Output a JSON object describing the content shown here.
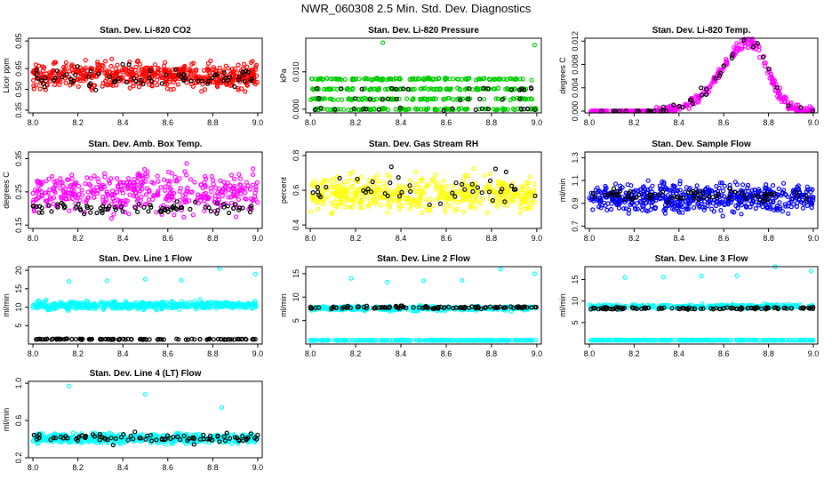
{
  "title": "NWR_060308  2.5 Min. Std. Dev. Diagnostics",
  "chart_data": [
    {
      "type": "scatter",
      "title": "Stan. Dev. Li-820 CO2",
      "ylabel": "Licor ppm",
      "xlim": [
        7.98,
        9.02
      ],
      "ylim": [
        0.33,
        0.87
      ],
      "x_ticks": [
        "8.0",
        "8.2",
        "8.4",
        "8.6",
        "8.8",
        "9.0"
      ],
      "y_ticks": [
        "0.35",
        "0.50",
        "0.65",
        "0.85"
      ],
      "y_tick_values": [
        0.35,
        0.5,
        0.65,
        0.85
      ],
      "series": [
        {
          "name": "main",
          "color": "#ff0000",
          "pattern": "band",
          "center": 0.6,
          "spread": 0.09,
          "count": 520
        },
        {
          "name": "secondary",
          "color": "#000000",
          "pattern": "band",
          "center": 0.58,
          "spread": 0.08,
          "count": 70
        }
      ]
    },
    {
      "type": "scatter",
      "title": "Stan. Dev. Li-820 Pressure",
      "ylabel": "kPa",
      "xlim": [
        7.98,
        9.02
      ],
      "ylim": [
        -0.001,
        0.019
      ],
      "x_ticks": [
        "8.0",
        "8.2",
        "8.4",
        "8.6",
        "8.8",
        "9.0"
      ],
      "y_ticks": [
        "0.000",
        "0.010"
      ],
      "y_tick_values": [
        0.0,
        0.01
      ],
      "series": [
        {
          "name": "main",
          "color": "#00cc00",
          "pattern": "levels",
          "levels": [
            0.0,
            0.0027,
            0.0054,
            0.0081
          ],
          "count": 460
        },
        {
          "name": "secondary",
          "color": "#000000",
          "pattern": "levels",
          "levels": [
            0.0,
            0.0027,
            0.0054
          ],
          "count": 45
        }
      ],
      "outliers": [
        {
          "x": 8.32,
          "y": 0.0178,
          "color": "#00cc00"
        },
        {
          "x": 8.99,
          "y": 0.0172,
          "color": "#00cc00"
        }
      ]
    },
    {
      "type": "scatter",
      "title": "Stan. Dev. Li-820 Temp.",
      "ylabel": "degrees C",
      "xlim": [
        7.98,
        9.02
      ],
      "ylim": [
        -0.0003,
        0.0125
      ],
      "x_ticks": [
        "8.0",
        "8.2",
        "8.4",
        "8.6",
        "8.8",
        "9.0"
      ],
      "y_ticks": [
        "0.000",
        "0.004",
        "0.008",
        "0.012"
      ],
      "y_tick_values": [
        0.0,
        0.004,
        0.008,
        0.012
      ],
      "series": [
        {
          "name": "main",
          "color": "#ff00ff",
          "pattern": "hump",
          "count": 380
        },
        {
          "name": "secondary",
          "color": "#000000",
          "pattern": "hump",
          "count": 40
        }
      ]
    },
    {
      "type": "scatter",
      "title": "Stan. Dev. Amb. Box Temp.",
      "ylabel": "degrees C",
      "xlim": [
        7.98,
        9.02
      ],
      "ylim": [
        0.14,
        0.37
      ],
      "x_ticks": [
        "8.0",
        "8.2",
        "8.4",
        "8.6",
        "8.8",
        "9.0"
      ],
      "y_ticks": [
        "0.15",
        "0.25",
        "0.35"
      ],
      "y_tick_values": [
        0.15,
        0.25,
        0.35
      ],
      "series": [
        {
          "name": "main",
          "color": "#ff00ff",
          "pattern": "band",
          "center": 0.25,
          "spread": 0.06,
          "count": 420
        },
        {
          "name": "secondary",
          "color": "#000000",
          "pattern": "band",
          "center": 0.2,
          "spread": 0.015,
          "count": 80
        }
      ]
    },
    {
      "type": "scatter",
      "title": "Stan. Dev. Gas Stream RH",
      "ylabel": "percent",
      "xlim": [
        7.98,
        9.02
      ],
      "ylim": [
        0.38,
        0.82
      ],
      "x_ticks": [
        "8.0",
        "8.2",
        "8.4",
        "8.6",
        "8.8",
        "9.0"
      ],
      "y_ticks": [
        "0.4",
        "0.6",
        "0.8"
      ],
      "y_tick_values": [
        0.4,
        0.6,
        0.8
      ],
      "series": [
        {
          "name": "main",
          "color": "#ffff00",
          "pattern": "band",
          "center": 0.58,
          "spread": 0.1,
          "count": 460
        },
        {
          "name": "secondary",
          "color": "#000000",
          "pattern": "band",
          "center": 0.6,
          "spread": 0.09,
          "count": 45
        }
      ]
    },
    {
      "type": "scatter",
      "title": "Stan. Dev. Sample Flow",
      "ylabel": "ml/min",
      "xlim": [
        7.98,
        9.02
      ],
      "ylim": [
        0.68,
        1.35
      ],
      "x_ticks": [
        "8.0",
        "8.2",
        "8.4",
        "8.6",
        "8.8",
        "9.0"
      ],
      "y_ticks": [
        "0.7",
        "0.9",
        "1.1",
        "1.3"
      ],
      "y_tick_values": [
        0.7,
        0.9,
        1.1,
        1.3
      ],
      "series": [
        {
          "name": "main",
          "color": "#0000ee",
          "pattern": "band",
          "center": 0.95,
          "spread": 0.12,
          "count": 560
        },
        {
          "name": "secondary",
          "color": "#000000",
          "pattern": "band",
          "center": 0.97,
          "spread": 0.06,
          "count": 70
        }
      ]
    },
    {
      "type": "scatter",
      "title": "Stan. Dev. Line 1 Flow",
      "ylabel": "ml/min",
      "xlim": [
        7.98,
        9.02
      ],
      "ylim": [
        0,
        21
      ],
      "x_ticks": [
        "8.0",
        "8.2",
        "8.4",
        "8.6",
        "8.8",
        "9.0"
      ],
      "y_ticks": [
        "5",
        "10",
        "15",
        "20"
      ],
      "y_tick_values": [
        5,
        10,
        15,
        20
      ],
      "series": [
        {
          "name": "main",
          "color": "#00ffff",
          "pattern": "band",
          "center": 10.5,
          "spread": 1.0,
          "count": 480
        },
        {
          "name": "secondary",
          "color": "#000000",
          "pattern": "flat",
          "center": 1.3,
          "spread": 0.12,
          "count": 110
        }
      ],
      "outliers": [
        {
          "x": 8.16,
          "y": 17.0,
          "color": "#00ffff"
        },
        {
          "x": 8.33,
          "y": 17.2,
          "color": "#00ffff"
        },
        {
          "x": 8.5,
          "y": 17.6,
          "color": "#00ffff"
        },
        {
          "x": 8.66,
          "y": 17.3,
          "color": "#00ffff"
        },
        {
          "x": 8.83,
          "y": 20.5,
          "color": "#00ffff"
        },
        {
          "x": 8.99,
          "y": 19.0,
          "color": "#00ffff"
        }
      ]
    },
    {
      "type": "scatter",
      "title": "Stan. Dev. Line 2 Flow",
      "ylabel": "ml/min",
      "xlim": [
        7.98,
        9.02
      ],
      "ylim": [
        0,
        16.5
      ],
      "x_ticks": [
        "8.0",
        "8.2",
        "8.4",
        "8.6",
        "8.8",
        "9.0"
      ],
      "y_ticks": [
        "5",
        "10",
        "15"
      ],
      "y_tick_values": [
        5,
        10,
        15
      ],
      "series": [
        {
          "name": "main",
          "color": "#00ffff",
          "pattern": "band",
          "center": 7.6,
          "spread": 0.5,
          "count": 300
        },
        {
          "name": "secondary",
          "color": "#000000",
          "pattern": "flat",
          "center": 7.8,
          "spread": 0.25,
          "count": 110
        },
        {
          "name": "baseline",
          "color": "#00ffff",
          "pattern": "flat",
          "center": 0.8,
          "spread": 0.06,
          "count": 240
        }
      ],
      "outliers": [
        {
          "x": 8.18,
          "y": 14.0,
          "color": "#00ffff"
        },
        {
          "x": 8.34,
          "y": 13.2,
          "color": "#00ffff"
        },
        {
          "x": 8.5,
          "y": 13.5,
          "color": "#00ffff"
        },
        {
          "x": 8.67,
          "y": 13.6,
          "color": "#00ffff"
        },
        {
          "x": 8.84,
          "y": 16.0,
          "color": "#00ffff"
        },
        {
          "x": 8.99,
          "y": 15.0,
          "color": "#00ffff"
        }
      ]
    },
    {
      "type": "scatter",
      "title": "Stan. Dev. Line 3 Flow",
      "ylabel": "ml/min",
      "xlim": [
        7.98,
        9.02
      ],
      "ylim": [
        0,
        18
      ],
      "x_ticks": [
        "8.0",
        "8.2",
        "8.4",
        "8.6",
        "8.8",
        "9.0"
      ],
      "y_ticks": [
        "5",
        "10",
        "15"
      ],
      "y_tick_values": [
        5,
        10,
        15
      ],
      "series": [
        {
          "name": "main",
          "color": "#00ffff",
          "pattern": "band",
          "center": 8.7,
          "spread": 0.5,
          "count": 300
        },
        {
          "name": "secondary",
          "color": "#000000",
          "pattern": "flat",
          "center": 8.3,
          "spread": 0.25,
          "count": 110
        },
        {
          "name": "baseline",
          "color": "#00ffff",
          "pattern": "flat",
          "center": 0.9,
          "spread": 0.06,
          "count": 240
        }
      ],
      "outliers": [
        {
          "x": 8.16,
          "y": 15.5,
          "color": "#00ffff"
        },
        {
          "x": 8.33,
          "y": 15.6,
          "color": "#00ffff"
        },
        {
          "x": 8.5,
          "y": 15.8,
          "color": "#00ffff"
        },
        {
          "x": 8.66,
          "y": 15.9,
          "color": "#00ffff"
        },
        {
          "x": 8.83,
          "y": 18.0,
          "color": "#00ffff"
        },
        {
          "x": 8.99,
          "y": 17.0,
          "color": "#00ffff"
        }
      ]
    },
    {
      "type": "scatter",
      "title": "Stan. Dev. Line 4 (LT) Flow",
      "ylabel": "ml/min",
      "xlim": [
        7.98,
        9.02
      ],
      "ylim": [
        0.2,
        1.02
      ],
      "x_ticks": [
        "8.0",
        "8.2",
        "8.4",
        "8.6",
        "8.8",
        "9.0"
      ],
      "y_ticks": [
        "0.2",
        "0.6",
        "1.0"
      ],
      "y_tick_values": [
        0.2,
        0.6,
        1.0
      ],
      "series": [
        {
          "name": "main",
          "color": "#00ffff",
          "pattern": "band",
          "center": 0.41,
          "spread": 0.05,
          "count": 480
        },
        {
          "name": "secondary",
          "color": "#000000",
          "pattern": "band",
          "center": 0.41,
          "spread": 0.05,
          "count": 90
        }
      ],
      "outliers": [
        {
          "x": 8.16,
          "y": 0.97,
          "color": "#00ffff"
        },
        {
          "x": 8.5,
          "y": 0.88,
          "color": "#00ffff"
        },
        {
          "x": 8.84,
          "y": 0.74,
          "color": "#00ffff"
        }
      ]
    }
  ]
}
